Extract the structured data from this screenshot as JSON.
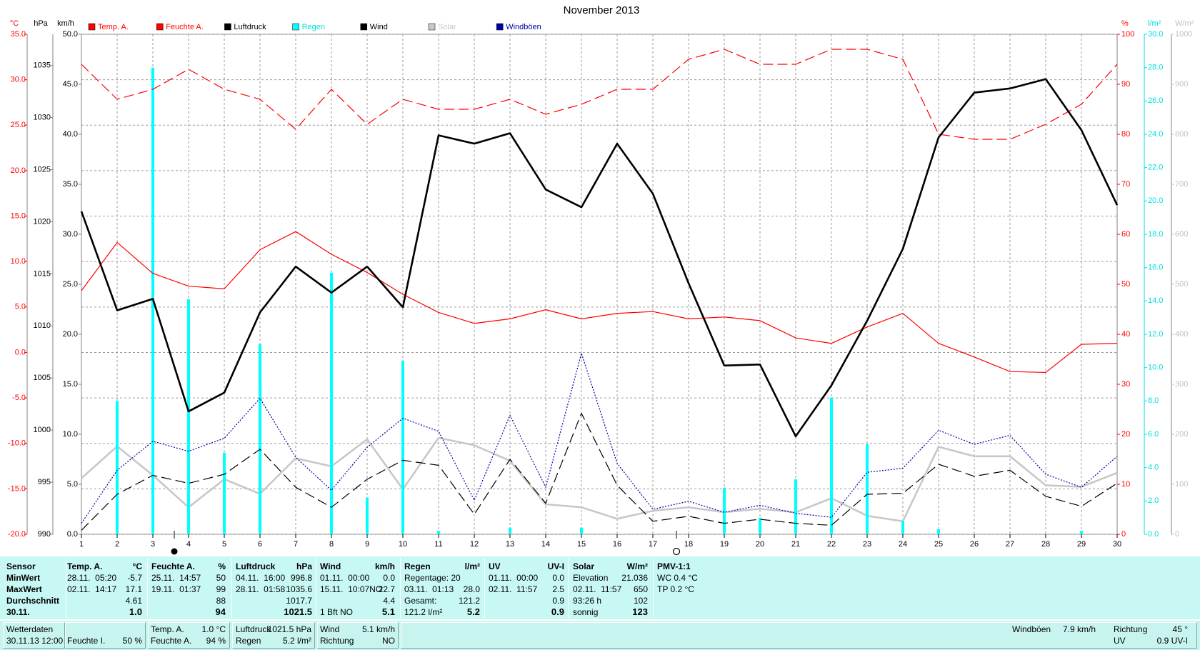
{
  "chart_data": {
    "type": "line",
    "title": "November 2013",
    "x": [
      1,
      2,
      3,
      4,
      5,
      6,
      7,
      8,
      9,
      10,
      11,
      12,
      13,
      14,
      15,
      16,
      17,
      18,
      19,
      20,
      21,
      22,
      23,
      24,
      25,
      26,
      27,
      28,
      29,
      30
    ],
    "xlim": [
      1,
      30
    ],
    "grid": true,
    "axes": [
      {
        "name": "°C",
        "side": "left",
        "color": "#ff0000",
        "ylim": [
          -20,
          35
        ],
        "yticks": [
          {
            "value": -20,
            "label": "-20.0"
          },
          {
            "value": -15,
            "label": "-15.0"
          },
          {
            "value": -10,
            "label": "-10.0"
          },
          {
            "value": -5,
            "label": "-5.0"
          },
          {
            "value": 0,
            "label": "0.0"
          },
          {
            "value": 5,
            "label": "5.0"
          },
          {
            "value": 10,
            "label": "10.0"
          },
          {
            "value": 15,
            "label": "15.0"
          },
          {
            "value": 20,
            "label": "20.0"
          },
          {
            "value": 25,
            "label": "25.0"
          },
          {
            "value": 30,
            "label": "30.0"
          },
          {
            "value": 35,
            "label": "35.0"
          }
        ]
      },
      {
        "name": "hPa",
        "side": "left",
        "color": "#000000",
        "ylim": [
          990,
          1038
        ],
        "yticks": [
          990,
          995,
          1000,
          1005,
          1010,
          1015,
          1020,
          1025,
          1030,
          1035
        ]
      },
      {
        "name": "km/h",
        "side": "left",
        "color": "#000000",
        "ylim": [
          0,
          50
        ],
        "yticks": [
          {
            "value": 0,
            "label": "0.0"
          },
          {
            "value": 5,
            "label": "5.0"
          },
          {
            "value": 10,
            "label": "10.0"
          },
          {
            "value": 15,
            "label": "15.0"
          },
          {
            "value": 20,
            "label": "20.0"
          },
          {
            "value": 25,
            "label": "25.0"
          },
          {
            "value": 30,
            "label": "30.0"
          },
          {
            "value": 35,
            "label": "35.0"
          },
          {
            "value": 40,
            "label": "40.0"
          },
          {
            "value": 45,
            "label": "45.0"
          },
          {
            "value": 50,
            "label": "50.0"
          }
        ]
      },
      {
        "name": "%",
        "side": "right",
        "color": "#ff0000",
        "ylim": [
          0,
          100
        ],
        "yticks": [
          0,
          10,
          20,
          30,
          40,
          50,
          60,
          70,
          80,
          90,
          100
        ]
      },
      {
        "name": "l/m²",
        "side": "right",
        "color": "#00dede",
        "ylim": [
          0,
          30
        ],
        "yticks": [
          {
            "value": 0,
            "label": "0.0"
          },
          {
            "value": 2,
            "label": "2.0"
          },
          {
            "value": 4,
            "label": "4.0"
          },
          {
            "value": 6,
            "label": "6.0"
          },
          {
            "value": 8,
            "label": "8.0"
          },
          {
            "value": 10,
            "label": "10.0"
          },
          {
            "value": 12,
            "label": "12.0"
          },
          {
            "value": 14,
            "label": "14.0"
          },
          {
            "value": 16,
            "label": "16.0"
          },
          {
            "value": 18,
            "label": "18.0"
          },
          {
            "value": 20,
            "label": "20.0"
          },
          {
            "value": 22,
            "label": "22.0"
          },
          {
            "value": 24,
            "label": "24.0"
          },
          {
            "value": 26,
            "label": "26.0"
          },
          {
            "value": 28,
            "label": "28.0"
          },
          {
            "value": 30,
            "label": "30.0"
          }
        ]
      },
      {
        "name": "W/m²",
        "side": "right",
        "color": "#c0c0c0",
        "ylim": [
          0,
          1000
        ],
        "yticks": [
          0,
          100,
          200,
          300,
          400,
          500,
          600,
          700,
          800,
          900,
          1000
        ]
      }
    ],
    "series": [
      {
        "name": "Temp. A.",
        "color": "#ff0000",
        "mark": "line",
        "dash": "solid",
        "width": 1.2,
        "axis": 0,
        "values": [
          6.8,
          12.1,
          8.7,
          7.3,
          7.0,
          11.3,
          13.3,
          10.8,
          8.8,
          6.4,
          4.4,
          3.2,
          3.7,
          4.7,
          3.7,
          4.3,
          4.5,
          3.7,
          3.9,
          3.5,
          1.6,
          1.0,
          2.8,
          4.3,
          1.0,
          -0.5,
          -2.1,
          -2.2,
          0.9,
          1.0
        ]
      },
      {
        "name": "Feuchte A.",
        "color": "#ff0000",
        "mark": "line",
        "dash": "dashed",
        "width": 1.2,
        "axis": 3,
        "values": [
          94,
          87,
          89,
          93,
          89,
          87,
          81,
          89,
          82,
          87,
          85,
          85,
          87,
          84,
          86,
          89,
          89,
          95,
          97,
          94,
          94,
          97,
          97,
          95,
          80,
          79,
          79,
          82,
          86,
          94
        ]
      },
      {
        "name": "Luftdruck",
        "color": "#000000",
        "mark": "line",
        "dash": "solid",
        "width": 2.6,
        "axis": 1,
        "values": [
          1021.0,
          1011.5,
          1012.6,
          1001.8,
          1003.6,
          1011.3,
          1015.7,
          1013.2,
          1015.7,
          1011.8,
          1028.3,
          1027.5,
          1028.5,
          1023.1,
          1021.4,
          1027.5,
          1022.7,
          1014.1,
          1006.2,
          1006.3,
          999.4,
          1004.3,
          1010.5,
          1017.4,
          1028.1,
          1032.4,
          1032.8,
          1033.7,
          1028.8,
          1021.6
        ]
      },
      {
        "name": "Regen",
        "color": "#00ffff",
        "mark": "bar",
        "axis": 4,
        "values": [
          0,
          8.0,
          28.0,
          14.1,
          4.9,
          11.4,
          0,
          15.7,
          2.2,
          10.4,
          0.2,
          0,
          0.4,
          0,
          0.4,
          0,
          0,
          0,
          2.8,
          1.0,
          3.3,
          8.2,
          5.4,
          0.8,
          0.3,
          0,
          0,
          0,
          0.2,
          0
        ]
      },
      {
        "name": "Wind",
        "color": "#000000",
        "mark": "line",
        "dash": "dashed",
        "width": 1.2,
        "axis": 2,
        "values": [
          0.4,
          4.0,
          5.9,
          5.1,
          6.0,
          8.5,
          4.7,
          2.7,
          5.5,
          7.4,
          6.9,
          2.0,
          7.5,
          3.1,
          12.1,
          4.9,
          1.3,
          1.8,
          1.1,
          1.5,
          1.1,
          0.9,
          4.0,
          4.1,
          7.0,
          5.8,
          6.4,
          3.8,
          2.8,
          5.1
        ]
      },
      {
        "name": "Solar",
        "color": "#c8c8c8",
        "mark": "line",
        "dash": "solid",
        "width": 2.6,
        "axis": 5,
        "values": [
          112,
          176,
          118,
          54,
          110,
          81,
          152,
          136,
          190,
          90,
          193,
          178,
          147,
          60,
          54,
          31,
          47,
          54,
          44,
          51,
          44,
          72,
          37,
          26,
          175,
          156,
          156,
          98,
          95,
          123
        ]
      },
      {
        "name": "Windböen",
        "color": "#0000a8",
        "mark": "line",
        "dash": "dotted",
        "width": 1.2,
        "axis": 2,
        "values": [
          1.1,
          6.4,
          9.3,
          8.3,
          9.6,
          13.6,
          7.7,
          4.4,
          8.7,
          11.6,
          10.3,
          3.4,
          11.9,
          4.7,
          18.1,
          7.1,
          2.5,
          3.3,
          2.2,
          2.9,
          2.1,
          1.7,
          6.2,
          6.6,
          10.4,
          9.0,
          9.9,
          6.0,
          4.7,
          7.8
        ]
      }
    ]
  },
  "summary": {
    "columns": [
      {
        "header": [
          "Sensor",
          null
        ],
        "rows": [
          [
            "MinWert",
            null
          ],
          [
            "MaxWert",
            null
          ],
          [
            "Durchschnitt",
            null
          ],
          [
            "30.11.",
            null
          ]
        ]
      },
      {
        "header": [
          "Temp. A.",
          "°C"
        ],
        "rows": [
          [
            "28.11.  05:20",
            "-5.7"
          ],
          [
            "02.11.  14:17",
            "17.1"
          ],
          [
            null,
            "4.61"
          ],
          [
            null,
            "1.0"
          ]
        ]
      },
      {
        "header": [
          "Feuchte A.",
          "%"
        ],
        "rows": [
          [
            "25.11.  14:57",
            "50"
          ],
          [
            "19.11.  01:37",
            "99"
          ],
          [
            null,
            "88"
          ],
          [
            null,
            "94"
          ]
        ]
      },
      {
        "header": [
          "Luftdruck",
          "hPa"
        ],
        "rows": [
          [
            "04.11.  16:00",
            "996.8"
          ],
          [
            "28.11.  01:58",
            "1035.6"
          ],
          [
            null,
            "1017.7"
          ],
          [
            null,
            "1021.5"
          ]
        ]
      },
      {
        "header": [
          "Wind",
          "km/h"
        ],
        "rows": [
          [
            "01.11.  00:00",
            "0.0"
          ],
          [
            "15.11.  10:07NO",
            "22.7"
          ],
          [
            null,
            "4.4"
          ],
          [
            "1 Bft NO",
            "5.1"
          ]
        ]
      },
      {
        "header": [
          "Regen",
          "l/m²"
        ],
        "rows": [
          [
            "Regentage: 20",
            null
          ],
          [
            "03.11.  01:13",
            "28.0"
          ],
          [
            "Gesamt:",
            "121.2"
          ],
          [
            "121.2 l/m²",
            "5.2"
          ]
        ]
      },
      {
        "header": [
          "UV",
          "UV-I"
        ],
        "rows": [
          [
            "01.11.  00:00",
            "0.0"
          ],
          [
            "02.11.  11:57",
            "2.5"
          ],
          [
            null,
            "0.9"
          ],
          [
            null,
            "0.9"
          ]
        ]
      },
      {
        "header": [
          "Solar",
          "W/m²"
        ],
        "rows": [
          [
            "Elevation",
            "21.036"
          ],
          [
            "02.11.  11:57",
            "650"
          ],
          [
            "93:26 h",
            "102"
          ],
          [
            "sonnig",
            "123"
          ]
        ]
      },
      {
        "header": [
          "PMV-1:1",
          null
        ],
        "rows": [
          [
            "WC 0.4 °C",
            null
          ],
          [
            "TP 0.2 °C",
            null
          ],
          [
            null,
            null
          ],
          [
            null,
            null
          ]
        ]
      }
    ]
  },
  "status": [
    [
      "Wetterdaten",
      null
    ],
    [
      "30.11.13 12:00",
      null
    ],
    [
      "Feuchte I.",
      "50 %"
    ],
    [
      "Temp. A.",
      "1.0 °C"
    ],
    [
      "Feuchte A.",
      "94 %"
    ],
    [
      "Luftdruck",
      "1021.5 hPa"
    ],
    [
      "Regen",
      "5.2 l/m²"
    ],
    [
      "Wind",
      "5.1 km/h"
    ],
    [
      "Richtung",
      "NO"
    ],
    [
      "Windböen",
      "7.9 km/h"
    ],
    [
      "Richtung",
      "45 °"
    ],
    [
      "UV",
      "0.9 UV-I"
    ]
  ]
}
